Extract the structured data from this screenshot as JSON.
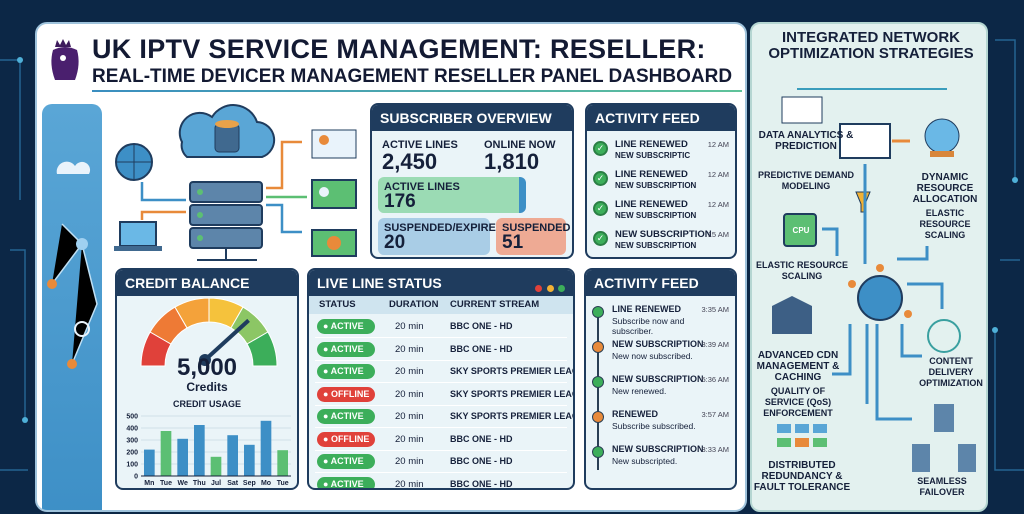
{
  "header": {
    "title": "UK IPTV SERVICE MANAGEMENT: RESELLER:",
    "subtitle": "REAL-TIME DEVICER MANAGEMENT RESELLER PANEL DASHBOARD"
  },
  "colors": {
    "navy": "#1f3c5e",
    "active": "#3cae5a",
    "offline": "#e0413a",
    "accent_orange": "#e88a3a",
    "accent_blue": "#3d8fc6"
  },
  "subscriber_overview": {
    "title": "SUBSCRIBER OVERVIEW",
    "active_lines_label": "ACTIVE LINES",
    "active_lines": "2,450",
    "online_now_label": "ONLINE NOW",
    "online_now": "1,810",
    "active_box_label": "ACTIVE LINES",
    "active_box_value": "176",
    "suspended_expired_label": "SUSPENDED/EXPIRED",
    "suspended_expired_value": "20",
    "suspended_label": "SUSPENDED",
    "suspended_value": "51"
  },
  "activity_feed_1": {
    "title": "ACTIVITY FEED",
    "items": [
      {
        "title": "LINE RENEWED",
        "sub": "NEW SUBSCRIPTIC",
        "time": "12 AM"
      },
      {
        "title": "LINE RENEWED",
        "sub": "NEW SUBSCRIPTION",
        "time": "12 AM"
      },
      {
        "title": "LINE RENEWED",
        "sub": "NEW SUBSCRIPTION",
        "time": "12 AM"
      },
      {
        "title": "NEW SUBSCRIPTION",
        "sub": "NEW SUBSCRIPTION",
        "time": "15 AM"
      }
    ]
  },
  "credit_balance": {
    "title": "CREDIT BALANCE",
    "value": "5,000",
    "unit": "Credits",
    "gauge_level_percent": 75
  },
  "chart_data": {
    "type": "bar",
    "title": "CREDIT USAGE",
    "categories": [
      "Mn",
      "Tue",
      "We",
      "Thu",
      "Jul",
      "Sat",
      "Sep",
      "Mo",
      "Tue"
    ],
    "values": [
      220,
      375,
      310,
      425,
      160,
      340,
      260,
      460,
      215
    ],
    "bar_colors": [
      "#3d8fc6",
      "#5cbf73",
      "#3d8fc6",
      "#3d8fc6",
      "#5cbf73",
      "#3d8fc6",
      "#3d8fc6",
      "#3d8fc6",
      "#5cbf73"
    ],
    "yticks": [
      0,
      100,
      200,
      300,
      400,
      500
    ],
    "ylim": [
      0,
      500
    ],
    "grid": true
  },
  "live_status": {
    "title": "LIVE LINE STATUS",
    "columns": [
      "STATUS",
      "DURATION",
      "CURRENT STREAM"
    ],
    "rows": [
      {
        "status": "ACTIVE",
        "duration": "20 min",
        "stream": "BBC ONE - HD"
      },
      {
        "status": "ACTIVE",
        "duration": "20 min",
        "stream": "BBC ONE - HD"
      },
      {
        "status": "ACTIVE",
        "duration": "20 min",
        "stream": "SKY SPORTS PREMIER LEAGUE"
      },
      {
        "status": "OFFLINE",
        "duration": "20 min",
        "stream": "SKY SPORTS PREMIER LEAGUE"
      },
      {
        "status": "ACTIVE",
        "duration": "20 min",
        "stream": "SKY SPORTS PREMIER LEAGUE"
      },
      {
        "status": "OFFLINE",
        "duration": "20 min",
        "stream": "BBC ONE - HD"
      },
      {
        "status": "ACTIVE",
        "duration": "20 min",
        "stream": "BBC ONE - HD"
      },
      {
        "status": "ACTIVE",
        "duration": "20 min",
        "stream": "BBC ONE - HD"
      }
    ]
  },
  "activity_feed_2": {
    "title": "ACTIVITY FEED",
    "items": [
      {
        "title": "LINE RENEWED",
        "sub": "Subscribe now and subscriber.",
        "time": "3:35 AM",
        "color": "#3cae5a"
      },
      {
        "title": "NEW SUBSCRIPTION",
        "sub": "New now subscribed.",
        "time": "3:39 AM",
        "color": "#e88a3a"
      },
      {
        "title": "NEW SUBSCRIPTION",
        "sub": "New renewed.",
        "time": "5:36 AM",
        "color": "#3cae5a"
      },
      {
        "title": "RENEWED",
        "sub": "Subscribe subscribed.",
        "time": "3:57 AM",
        "color": "#e88a3a"
      },
      {
        "title": "NEW SUBSCRIPTION",
        "sub": "New subscripted.",
        "time": "3:33 AM",
        "color": "#3cae5a"
      }
    ]
  },
  "network": {
    "title": "INTEGRATED NETWORK OPTIMIZATION STRATEGIES",
    "labels": {
      "data_analytics": "DATA ANALYTICS & PREDICTION",
      "predictive": "PREDICTIVE DEMAND MODELING",
      "dynamic": "DYNAMIC RESOURCE ALLOCATION",
      "elastic_r": "ELASTIC RESOURCE SCALING",
      "cpu": "CPU",
      "elastic_l": "ELASTIC RESOURCE SCALING",
      "cdn": "ADVANCED CDN MANAGEMENT & CACHING",
      "qos": "QUALITY OF SERVICE (QoS) ENFORCEMENT",
      "content": "CONTENT DELIVERY OPTIMIZATION",
      "distributed": "DISTRIBUTED REDUNDANCY & FAULT TOLERANCE",
      "failover": "SEAMLESS FAILOVER"
    }
  }
}
